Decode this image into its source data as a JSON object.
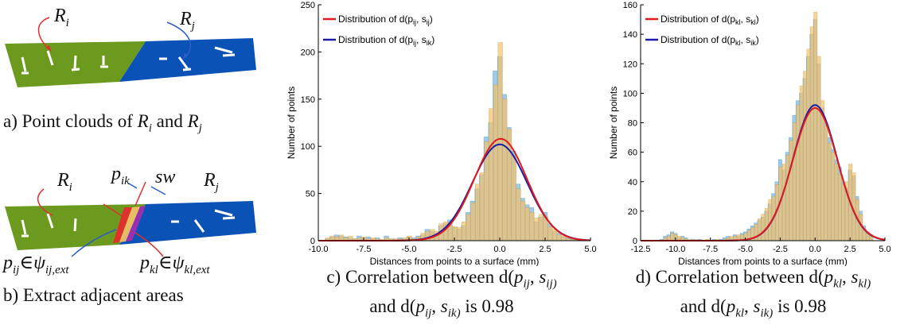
{
  "panel_a": {
    "label_ri": "R",
    "label_ri_sub": "i",
    "label_rj": "R",
    "label_rj_sub": "j",
    "caption_prefix": "a) Point clouds of ",
    "caption_r": "R",
    "caption_i": "i",
    "caption_and": " and ",
    "caption_j": "j",
    "colors": {
      "green": "#6b9a1f",
      "blue": "#0a52b5",
      "red_arrow": "#e0322c",
      "blue_arrow": "#2a5ec8"
    }
  },
  "panel_b": {
    "label_ri": "R",
    "label_ri_sub": "i",
    "label_rj": "R",
    "label_rj_sub": "j",
    "label_pik": "p",
    "label_pik_sub": "ik",
    "label_sw": "sw",
    "label_pij": "p",
    "label_pij_sub": "ij",
    "label_pij_in": "∈ψ",
    "label_pij_set_sub": "ij,ext",
    "label_pkl": "p",
    "label_pkl_sub": "kl",
    "label_pkl_in": "∈ψ",
    "label_pkl_set_sub": "kl,ext",
    "caption": "b) Extract adjacent areas"
  },
  "panel_c": {
    "caption_line1_a": "c) Correlation between d(",
    "caption_line1_p": "p",
    "caption_line1_psub": "ij",
    "caption_line1_comma": ", ",
    "caption_line1_s": "s",
    "caption_line1_ssub": "ij)",
    "caption_line2_a": "and d(",
    "caption_line2_p": "p",
    "caption_line2_psub": "ij",
    "caption_line2_comma": ", ",
    "caption_line2_s": "s",
    "caption_line2_ssub": "ik)",
    "caption_line2_b": " is 0.98"
  },
  "panel_d": {
    "caption_line1_a": "d) Correlation between d(",
    "caption_line1_p": "p",
    "caption_line1_psub": "kl",
    "caption_line1_comma": ", ",
    "caption_line1_s": "s",
    "caption_line1_ssub": "kl)",
    "caption_line2_a": "and d(",
    "caption_line2_p": "p",
    "caption_line2_psub": "kl",
    "caption_line2_comma": ", ",
    "caption_line2_s": "s",
    "caption_line2_ssub": "ik)",
    "caption_line2_b": " is 0.98"
  },
  "chart_data": [
    {
      "type": "bar",
      "xlabel": "Distances from points to a surface (mm)",
      "ylabel": "Number of points",
      "xlim": [
        -10,
        5
      ],
      "ylim": [
        0,
        250
      ],
      "xticks": [
        "-10.0",
        "-7.5",
        "-5.0",
        "-2.5",
        "0.0",
        "2.5",
        "5.0"
      ],
      "yticks": [
        "0",
        "50",
        "100",
        "150",
        "200",
        "250"
      ],
      "legend_position": "top-left",
      "colors": {
        "hist_a": "#8ec3e6",
        "hist_b": "#f5c26b",
        "curve_a": "#e01b1b",
        "curve_b": "#1c1ca8"
      },
      "series": [
        {
          "name": "Distribution of d(p_ij, s_ij)",
          "legend_parts": [
            "Distribution of d(p",
            "ij",
            ", s",
            "ij",
            ")"
          ],
          "curve": {
            "mean": 0.05,
            "peak": 108,
            "sigma": 1.45
          },
          "hist_bins": [
            -9.75,
            -9.5,
            -9.25,
            -9,
            -8.75,
            -8.5,
            -8.25,
            -8,
            -7.75,
            -7.5,
            -7.25,
            -7,
            -6.75,
            -6.5,
            -6.25,
            -6,
            -5.75,
            -5.5,
            -5.25,
            -5,
            -4.75,
            -4.5,
            -4.25,
            -4,
            -3.75,
            -3.5,
            -3.25,
            -3,
            -2.75,
            -2.5,
            -2.25,
            -2,
            -1.75,
            -1.5,
            -1.25,
            -1,
            -0.75,
            -0.5,
            -0.25,
            0,
            0.25,
            0.5,
            0.75,
            1,
            1.25,
            1.5,
            1.75,
            2,
            2.25,
            2.5,
            2.75,
            3,
            3.25,
            3.5,
            3.75,
            4,
            4.25,
            4.5,
            4.75
          ],
          "values": [
            0,
            2,
            4,
            6,
            5,
            4,
            3,
            2,
            5,
            3,
            4,
            2,
            3,
            1,
            5,
            2,
            1,
            3,
            2,
            4,
            3,
            5,
            6,
            12,
            10,
            8,
            16,
            18,
            22,
            14,
            12,
            16,
            30,
            42,
            55,
            70,
            110,
            125,
            180,
            195,
            155,
            120,
            95,
            60,
            45,
            38,
            35,
            20,
            25,
            30,
            18,
            10,
            8,
            4,
            3,
            2,
            1,
            1,
            0
          ]
        },
        {
          "name": "Distribution of d(p_ij, s_ik)",
          "legend_parts": [
            "Distribution of d(p",
            "ij",
            ", s",
            "ik",
            ")"
          ],
          "curve": {
            "mean": 0.0,
            "peak": 102,
            "sigma": 1.5
          },
          "values": [
            0,
            3,
            5,
            4,
            6,
            3,
            5,
            2,
            3,
            4,
            2,
            3,
            2,
            1,
            3,
            2,
            2,
            2,
            3,
            5,
            2,
            4,
            8,
            10,
            12,
            10,
            18,
            20,
            16,
            15,
            14,
            20,
            28,
            40,
            60,
            72,
            105,
            140,
            165,
            210,
            150,
            118,
            90,
            55,
            42,
            35,
            30,
            24,
            28,
            25,
            15,
            12,
            6,
            5,
            2,
            1,
            1,
            0,
            0
          ]
        }
      ]
    },
    {
      "type": "bar",
      "xlabel": "Distances from points to a surface (mm)",
      "ylabel": "Number of points",
      "xlim": [
        -12.5,
        5
      ],
      "ylim": [
        0,
        160
      ],
      "xticks": [
        "-12.5",
        "-10.0",
        "-7.5",
        "-5.0",
        "-2.5",
        "0.0",
        "2.5",
        "5.0"
      ],
      "yticks": [
        "0",
        "20",
        "40",
        "60",
        "80",
        "100",
        "120",
        "140",
        "160"
      ],
      "legend_position": "top-left",
      "colors": {
        "hist_a": "#8ec3e6",
        "hist_b": "#f5c26b",
        "curve_a": "#e01b1b",
        "curve_b": "#1c1ca8"
      },
      "series": [
        {
          "name": "Distribution of d(p_kl, s_kl)",
          "legend_parts": [
            "Distribution of d(p",
            "kl",
            ", s",
            "kl",
            ")"
          ],
          "curve": {
            "mean": 0.0,
            "peak": 90,
            "sigma": 1.6
          },
          "hist_bins": [
            -11,
            -10.75,
            -10.5,
            -10.25,
            -10,
            -9.75,
            -9.5,
            -9.25,
            -9,
            -8.75,
            -8.5,
            -8.25,
            -8,
            -7.75,
            -7.5,
            -7.25,
            -7,
            -6.75,
            -6.5,
            -6.25,
            -6,
            -5.75,
            -5.5,
            -5.25,
            -5,
            -4.75,
            -4.5,
            -4.25,
            -4,
            -3.75,
            -3.5,
            -3.25,
            -3,
            -2.75,
            -2.5,
            -2.25,
            -2,
            -1.75,
            -1.5,
            -1.25,
            -1,
            -0.75,
            -0.5,
            -0.25,
            0,
            0.25,
            0.5,
            0.75,
            1,
            1.25,
            1.5,
            1.75,
            2,
            2.25,
            2.5,
            2.75,
            3,
            3.25,
            3.5,
            3.75,
            4
          ],
          "values": [
            1,
            3,
            4,
            6,
            5,
            2,
            3,
            2,
            0,
            1,
            0,
            1,
            0,
            0,
            0,
            1,
            0,
            1,
            2,
            3,
            2,
            4,
            3,
            5,
            6,
            8,
            10,
            12,
            14,
            16,
            20,
            25,
            32,
            40,
            55,
            48,
            60,
            70,
            85,
            95,
            100,
            110,
            125,
            140,
            150,
            120,
            90,
            80,
            70,
            62,
            55,
            50,
            40,
            36,
            48,
            44,
            30,
            20,
            10,
            6,
            4
          ]
        },
        {
          "name": "Distribution of d(p_kl, s_ik)",
          "legend_parts": [
            "Distribution of d(p",
            "kl",
            ", s",
            "ik",
            ")"
          ],
          "curve": {
            "mean": 0.0,
            "peak": 92,
            "sigma": 1.58
          },
          "values": [
            0,
            2,
            3,
            5,
            4,
            3,
            2,
            1,
            1,
            0,
            1,
            0,
            0,
            1,
            0,
            0,
            1,
            0,
            1,
            2,
            3,
            3,
            4,
            4,
            5,
            7,
            9,
            11,
            15,
            18,
            22,
            28,
            30,
            38,
            50,
            52,
            58,
            68,
            80,
            92,
            105,
            115,
            130,
            145,
            155,
            125,
            95,
            78,
            66,
            60,
            52,
            45,
            38,
            40,
            52,
            46,
            28,
            18,
            8,
            5,
            3
          ]
        }
      ]
    }
  ]
}
